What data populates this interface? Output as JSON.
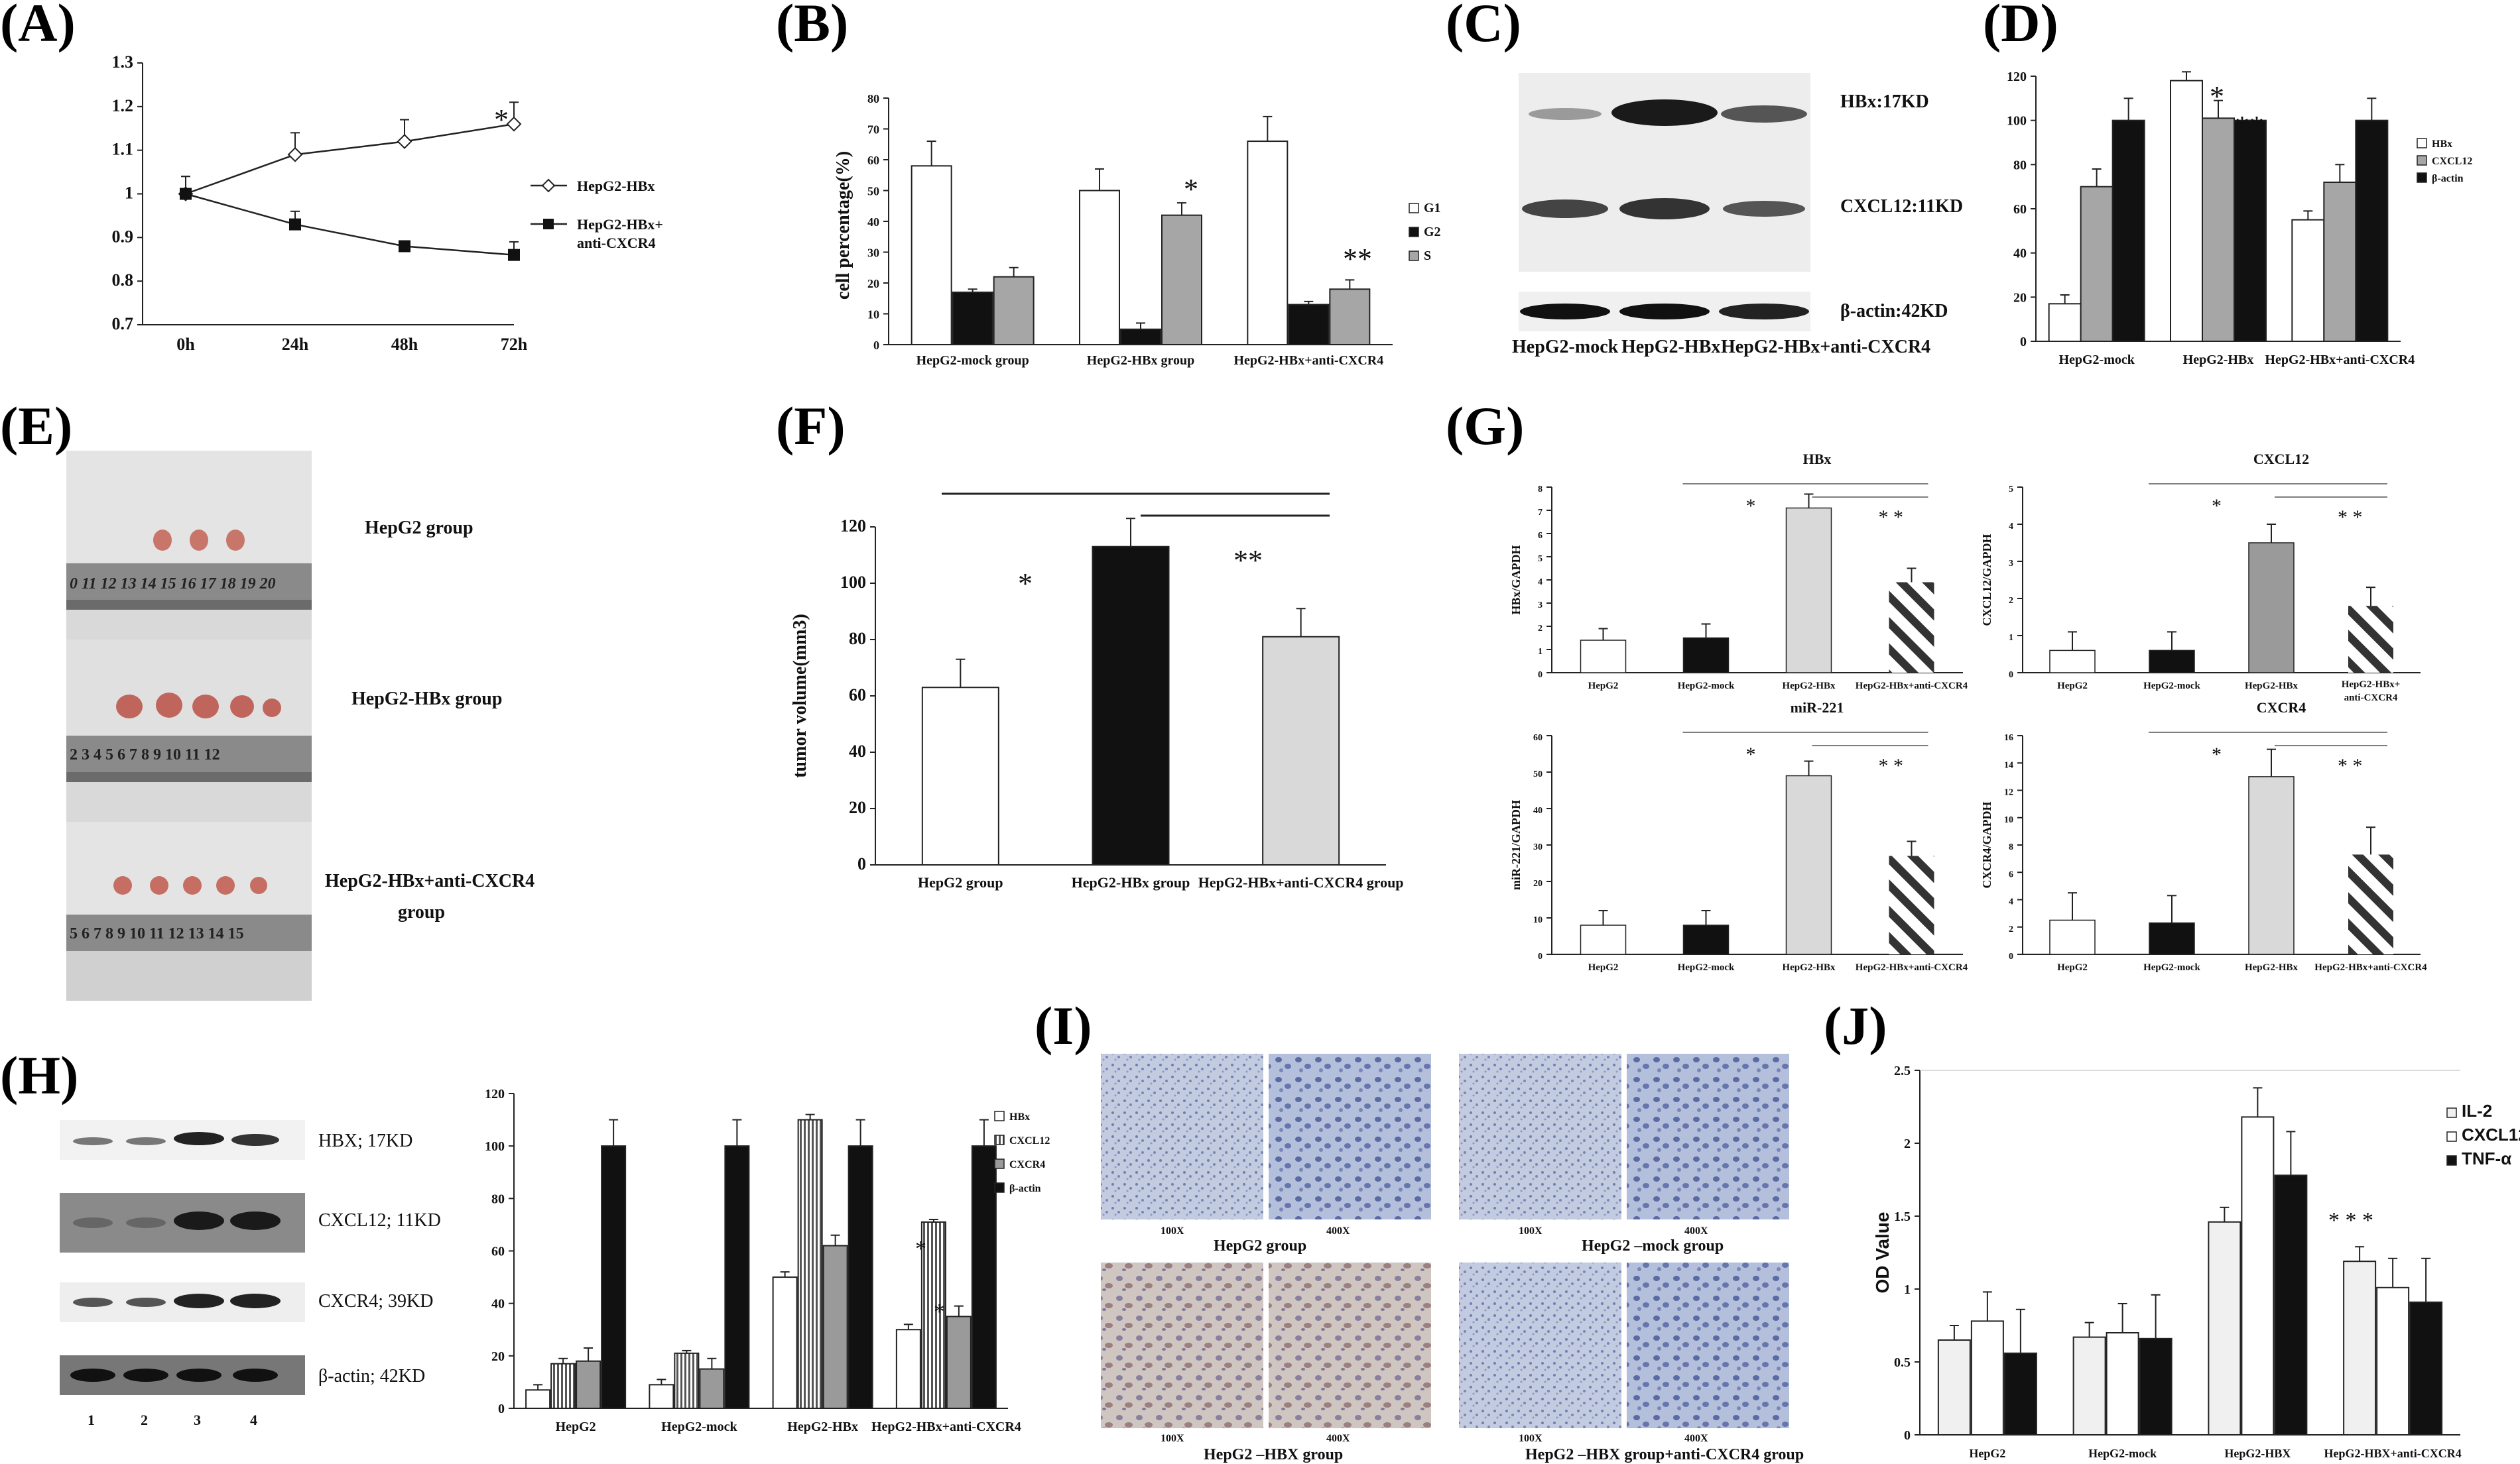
{
  "colors": {
    "white": "#ffffff",
    "black": "#111111",
    "gray": "#a6a6a6",
    "lightgray": "#d4d4d4",
    "medgray": "#9a9a9a",
    "dark": "#222222"
  },
  "panels": {
    "A": {
      "letter": "(A)"
    },
    "B": {
      "letter": "(B)"
    },
    "C": {
      "letter": "(C)"
    },
    "D": {
      "letter": "(D)"
    },
    "E": {
      "letter": "(E)"
    },
    "F": {
      "letter": "(F)"
    },
    "G": {
      "letter": "(G)"
    },
    "H": {
      "letter": "(H)"
    },
    "I": {
      "letter": "(I)"
    },
    "J": {
      "letter": "(J)"
    }
  },
  "blotC": {
    "bands": [
      "HBx:17KD",
      "CXCL12:11KD",
      "β-actin:42KD"
    ],
    "lanes": [
      "HepG2-mock",
      "HepG2-HBx",
      "HepG2-HBx+anti-CXCR4"
    ]
  },
  "photoE": {
    "labels": [
      "HepG2 group",
      "HepG2-HBx group",
      "HepG2-HBx+anti-CXCR4",
      "group"
    ],
    "ruler1": "0 11 12 13 14 15 16 17 18 19 20",
    "ruler2": "2 3 4 5 6 7 8 9 10 11 12",
    "ruler3": "5 6 7 8 9 10 11 12 13 14 15"
  },
  "blotH": {
    "bands": [
      "HBX; 17KD",
      "CXCL12; 11KD",
      "CXCR4; 39KD",
      "β-actin; 42KD"
    ],
    "lanes": [
      "1",
      "2",
      "3",
      "4"
    ]
  },
  "imagesI": {
    "mags": [
      "100X",
      "400X"
    ],
    "groups": [
      "HepG2 group",
      "HepG2 –mock group",
      "HepG2 –HBX group",
      "HepG2 –HBX group+anti-CXCR4 group"
    ]
  },
  "chart_data": [
    {
      "panel": "A",
      "type": "line",
      "categories": [
        "0h",
        "24h",
        "48h",
        "72h"
      ],
      "ylim": [
        0.7,
        1.3
      ],
      "yticks": [
        0.7,
        0.8,
        0.9,
        1,
        1.1,
        1.2,
        1.3
      ],
      "series": [
        {
          "name": "HepG2-HBx",
          "values": [
            1.0,
            1.09,
            1.12,
            1.16
          ],
          "errors": [
            0.04,
            0.05,
            0.05,
            0.05
          ],
          "marker": "diamond"
        },
        {
          "name": "HepG2-HBx+ anti-CXCR4",
          "values": [
            1.0,
            0.93,
            0.88,
            0.86
          ],
          "errors": [
            0.04,
            0.03,
            0.01,
            0.03
          ],
          "marker": "square"
        }
      ],
      "annotations": [
        "*"
      ]
    },
    {
      "panel": "B",
      "type": "bar",
      "ylabel": "cell percentage(%)",
      "ylim": [
        0,
        80
      ],
      "yticks": [
        0,
        10,
        20,
        30,
        40,
        50,
        60,
        70,
        80
      ],
      "categories": [
        "HepG2-mock group",
        "HepG2-HBx group",
        "HepG2-HBx+anti-CXCR4"
      ],
      "series": [
        {
          "name": "G1",
          "values": [
            58,
            50,
            66
          ],
          "errors": [
            8,
            7,
            8
          ]
        },
        {
          "name": "G2",
          "values": [
            17,
            5,
            13
          ],
          "errors": [
            1,
            2,
            1
          ]
        },
        {
          "name": "S",
          "values": [
            22,
            42,
            18
          ],
          "errors": [
            3,
            4,
            3
          ]
        }
      ],
      "annotations": [
        "*",
        "**"
      ]
    },
    {
      "panel": "D",
      "type": "bar",
      "ylim": [
        0,
        120
      ],
      "yticks": [
        0,
        20,
        40,
        60,
        80,
        100,
        120
      ],
      "categories": [
        "HepG2-mock",
        "HepG2-HBx",
        "HepG2-HBx+anti-CXCR4"
      ],
      "series": [
        {
          "name": "HBx",
          "values": [
            17,
            118,
            55
          ],
          "errors": [
            4,
            4,
            4
          ]
        },
        {
          "name": "CXCL12",
          "values": [
            70,
            101,
            72
          ],
          "errors": [
            8,
            8,
            8
          ]
        },
        {
          "name": "β-actin",
          "values": [
            100,
            100,
            100
          ],
          "errors": [
            10,
            0,
            10
          ]
        }
      ],
      "annotations": [
        "*",
        "**"
      ]
    },
    {
      "panel": "F",
      "type": "bar",
      "ylabel": "tumor volume(mm3)",
      "ylim": [
        0,
        120
      ],
      "yticks": [
        0,
        20,
        40,
        60,
        80,
        100,
        120
      ],
      "categories": [
        "HepG2 group",
        "HepG2-HBx group",
        "HepG2-HBx+anti-CXCR4 group"
      ],
      "values": [
        63,
        113,
        81
      ],
      "errors": [
        10,
        10,
        10
      ],
      "annotations": [
        "*",
        "**"
      ]
    },
    {
      "panel": "G1",
      "type": "bar",
      "title": "HBx",
      "ylabel": "HBx/GAPDH",
      "ylim": [
        0,
        8
      ],
      "yticks": [
        0,
        1,
        2,
        3,
        4,
        5,
        6,
        7,
        8
      ],
      "categories": [
        "HepG2",
        "HepG2-mock",
        "HepG2-HBx",
        "HepG2-HBx+anti-CXCR4"
      ],
      "values": [
        1.4,
        1.5,
        7.1,
        3.9
      ],
      "errors": [
        0.5,
        0.6,
        0.6,
        0.6
      ],
      "annotations": [
        "*",
        "* *"
      ]
    },
    {
      "panel": "G2",
      "type": "bar",
      "title": "CXCL12",
      "ylabel": "CXCL12/GAPDH",
      "ylim": [
        0,
        5
      ],
      "yticks": [
        0,
        1,
        2,
        3,
        4,
        5
      ],
      "categories": [
        "HepG2",
        "HepG2-mock",
        "HepG2-HBx",
        "HepG2-HBx+ anti-CXCR4"
      ],
      "values": [
        0.6,
        0.6,
        3.5,
        1.8
      ],
      "errors": [
        0.5,
        0.5,
        0.5,
        0.5
      ],
      "annotations": [
        "*",
        "* *"
      ]
    },
    {
      "panel": "G3",
      "type": "bar",
      "title": "miR-221",
      "ylabel": "miR-221/GAPDH",
      "ylim": [
        0,
        60
      ],
      "yticks": [
        0,
        10,
        20,
        30,
        40,
        50,
        60
      ],
      "categories": [
        "HepG2",
        "HepG2-mock",
        "HepG2-HBx",
        "HepG2-HBx+anti-CXCR4"
      ],
      "values": [
        8,
        8,
        49,
        27
      ],
      "errors": [
        4,
        4,
        4,
        4
      ],
      "annotations": [
        "*",
        "* *"
      ]
    },
    {
      "panel": "G4",
      "type": "bar",
      "title": "CXCR4",
      "ylabel": "CXCR4/GAPDH",
      "ylim": [
        0,
        16
      ],
      "yticks": [
        0,
        2,
        4,
        6,
        8,
        10,
        12,
        14,
        16
      ],
      "categories": [
        "HepG2",
        "HepG2-mock",
        "HepG2-HBx",
        "HepG2-HBx+anti-CXCR4"
      ],
      "values": [
        2.5,
        2.3,
        13,
        7.3
      ],
      "errors": [
        2,
        2,
        2,
        2
      ],
      "annotations": [
        "*",
        "* *"
      ]
    },
    {
      "panel": "H",
      "type": "bar",
      "ylim": [
        0,
        120
      ],
      "yticks": [
        0,
        20,
        40,
        60,
        80,
        100,
        120
      ],
      "categories": [
        "HepG2",
        "HepG2-mock",
        "HepG2-HBx",
        "HepG2-HBx+anti-CXCR4"
      ],
      "series": [
        {
          "name": "HBx",
          "values": [
            7,
            9,
            50,
            30
          ],
          "errors": [
            2,
            2,
            2,
            2
          ]
        },
        {
          "name": "CXCL12",
          "values": [
            17,
            21,
            110,
            71
          ],
          "errors": [
            2,
            1,
            2,
            1
          ]
        },
        {
          "name": "CXCR4",
          "values": [
            18,
            15,
            62,
            35
          ],
          "errors": [
            5,
            4,
            4,
            4
          ]
        },
        {
          "name": "β-actin",
          "values": [
            100,
            100,
            100,
            100
          ],
          "errors": [
            10,
            10,
            10,
            10
          ]
        }
      ],
      "annotations": [
        "*",
        "*"
      ]
    },
    {
      "panel": "J",
      "type": "bar",
      "ylabel": "OD Value",
      "ylim": [
        0,
        2.5
      ],
      "yticks": [
        0,
        0.5,
        1,
        1.5,
        2,
        2.5
      ],
      "categories": [
        "HepG2",
        "HepG2-mock",
        "HepG2-HBX",
        "HepG2-HBX+anti-CXCR4"
      ],
      "series": [
        {
          "name": "IL-2",
          "values": [
            0.65,
            0.67,
            1.46,
            1.19
          ],
          "errors": [
            0.1,
            0.1,
            0.1,
            0.1
          ]
        },
        {
          "name": "CXCL12",
          "values": [
            0.78,
            0.7,
            2.18,
            1.01
          ],
          "errors": [
            0.2,
            0.2,
            0.2,
            0.2
          ]
        },
        {
          "name": "TNF-α",
          "values": [
            0.56,
            0.66,
            1.78,
            0.91
          ],
          "errors": [
            0.3,
            0.3,
            0.3,
            0.3
          ]
        }
      ],
      "annotations": [
        "* * *"
      ]
    }
  ]
}
